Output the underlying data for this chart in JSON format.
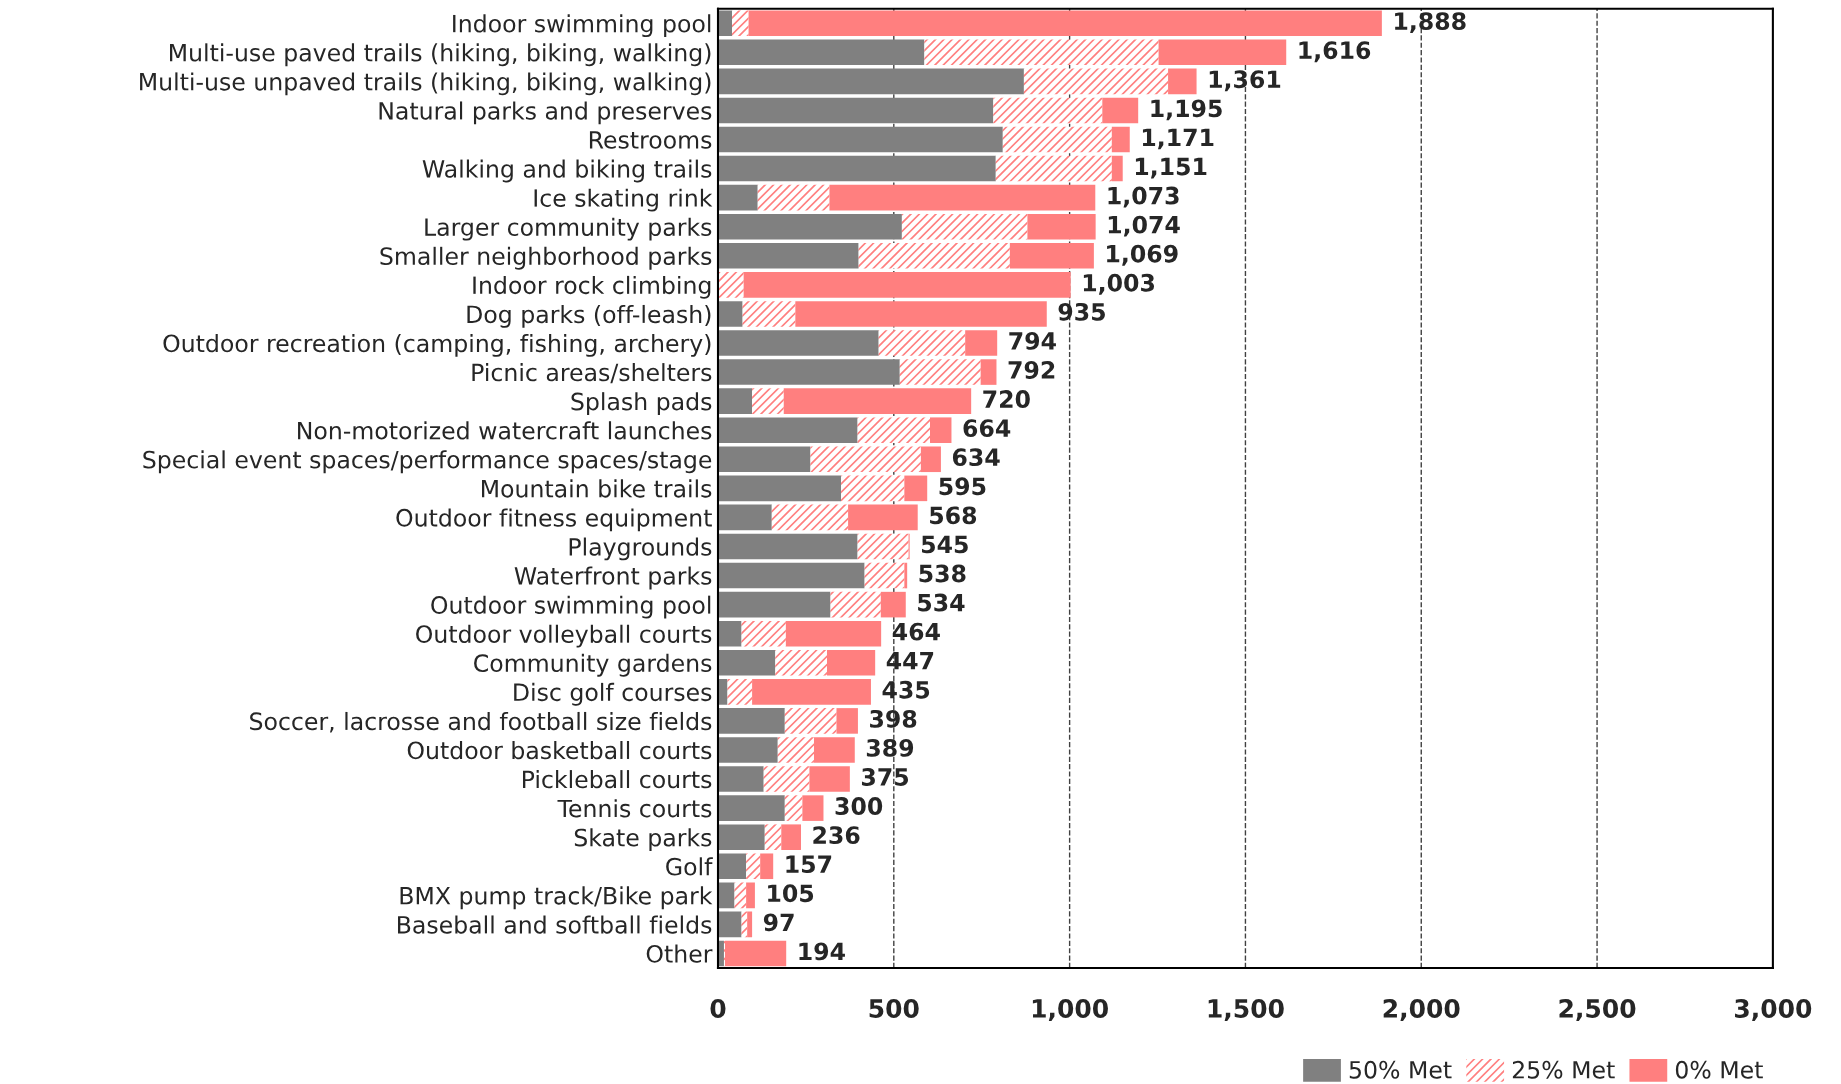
{
  "chart_data": {
    "type": "bar",
    "orientation": "horizontal",
    "stacked": true,
    "categories": [
      "Indoor swimming pool",
      "Multi-use paved trails (hiking, biking, walking)",
      "Multi-use unpaved trails (hiking, biking, walking)",
      "Natural parks and preserves",
      "Restrooms",
      "Walking and biking trails",
      "Ice skating rink",
      "Larger community parks",
      "Smaller neighborhood parks",
      "Indoor rock climbing",
      "Dog parks (off-leash)",
      "Outdoor recreation (camping, fishing, archery)",
      "Picnic areas/shelters",
      "Splash pads",
      "Non-motorized watercraft launches",
      "Special event spaces/performance spaces/stage",
      "Mountain bike trails",
      "Outdoor fitness equipment",
      "Playgrounds",
      "Waterfront parks",
      "Outdoor swimming pool",
      "Outdoor volleyball courts",
      "Community gardens",
      "Disc golf courses",
      "Soccer, lacrosse and football size fields",
      "Outdoor basketball courts",
      "Pickleball courts",
      "Tennis courts",
      "Skate parks",
      "Golf",
      "BMX pump track/Bike park",
      "Baseball and softball fields",
      "Other"
    ],
    "series": [
      {
        "name": "50% Met",
        "color": "#808080",
        "values": [
          40,
          587,
          870,
          783,
          810,
          790,
          113,
          523,
          400,
          null,
          70,
          457,
          517,
          97,
          397,
          263,
          350,
          153,
          397,
          417,
          320,
          67,
          163,
          27,
          190,
          170,
          130,
          190,
          133,
          80,
          47,
          67,
          17
        ]
      },
      {
        "name": "25% Met",
        "color": "#ff7f7f",
        "values": [
          47,
          666,
          410,
          310,
          310,
          330,
          204,
          357,
          430,
          73,
          150,
          246,
          230,
          90,
          206,
          314,
          180,
          217,
          145,
          113,
          143,
          126,
          147,
          70,
          147,
          103,
          130,
          50,
          47,
          40,
          33,
          16,
          3
        ]
      },
      {
        "name": "0% Met",
        "color": "#ff7f7f",
        "values": [
          1801,
          363,
          81,
          102,
          51,
          31,
          756,
          194,
          239,
          930,
          715,
          91,
          45,
          533,
          61,
          57,
          65,
          198,
          3,
          8,
          71,
          271,
          137,
          338,
          61,
          116,
          115,
          60,
          56,
          37,
          25,
          14,
          174
        ]
      }
    ],
    "totals": [
      "1,888",
      "1,616",
      "1,361",
      "1,195",
      "1,171",
      "1,151",
      "1,073",
      "1,074",
      "1,069",
      "1,003",
      "935",
      "794",
      "792",
      "720",
      "664",
      "634",
      "595",
      "568",
      "545",
      "538",
      "534",
      "464",
      "447",
      "435",
      "398",
      "389",
      "375",
      "300",
      "236",
      "157",
      "105",
      "97",
      "194"
    ],
    "xlim": [
      0,
      3000
    ],
    "xticks": [
      {
        "value": 0,
        "label": "0"
      },
      {
        "value": 500,
        "label": "500"
      },
      {
        "value": 1000,
        "label": "1,000"
      },
      {
        "value": 1500,
        "label": "1,500"
      },
      {
        "value": 2000,
        "label": "2,000"
      },
      {
        "value": 2500,
        "label": "2,500"
      },
      {
        "value": 3000,
        "label": "3,000"
      }
    ],
    "grid": "x",
    "legend": "bottom"
  }
}
